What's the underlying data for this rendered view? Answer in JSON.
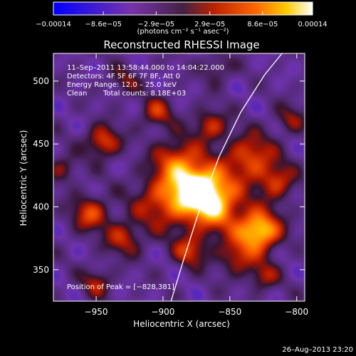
{
  "chart_data": {
    "type": "heatmap",
    "title": "Reconstructed RHESSI Image",
    "xlabel": "Heliocentric X (arcsec)",
    "ylabel": "Heliocentric Y (arcsec)",
    "xlim": [
      -982,
      -794
    ],
    "ylim": [
      325,
      522
    ],
    "x_ticks": [
      -950,
      -900,
      -850,
      -800
    ],
    "x_tick_labels": [
      "−950",
      "−900",
      "−850",
      "−800"
    ],
    "y_ticks": [
      350,
      400,
      450,
      500
    ],
    "y_tick_labels": [
      "350",
      "400",
      "450",
      "500"
    ],
    "colorbar": {
      "ticks": [
        -0.00014,
        -8.6e-05,
        -2.9e-05,
        2.9e-05,
        8.6e-05,
        0.00014
      ],
      "tick_labels": [
        "−0.00014",
        "−8.6e−05",
        "−2.9e−05",
        "2.9e−05",
        "8.6e−05",
        "0.00014"
      ],
      "unit_label": "(photons cm⁻² s⁻¹ asec⁻²)",
      "range": [
        -0.00014,
        0.00014
      ]
    },
    "annotations": [
      "11–Sep–2011 13:58:44.000 to 14:04:22.000",
      "Detectors: 4F 5F 6F 7F 8F, Att 0",
      "Energy Range: 12.0 – 25.0 keV",
      "Clean",
      "Total counts: 8.18E+03"
    ],
    "peak_label": "Position of Peak = [−828,381]",
    "peak": [
      -828,
      381
    ],
    "limb_curve": [
      [
        -894,
        325
      ],
      [
        -884,
        360
      ],
      [
        -872,
        400
      ],
      [
        -858,
        440
      ],
      [
        -842,
        475
      ],
      [
        -824,
        505
      ],
      [
        -811,
        522
      ]
    ],
    "sources": [
      {
        "x": -873,
        "y": 415,
        "amp": 1.0,
        "r": 14
      },
      {
        "x": -828,
        "y": 381,
        "amp": 1.0,
        "r": 11
      },
      {
        "x": -860,
        "y": 400,
        "amp": 0.65,
        "r": 16
      },
      {
        "x": -835,
        "y": 440,
        "amp": 0.6,
        "r": 13
      },
      {
        "x": -900,
        "y": 405,
        "amp": 0.55,
        "r": 16
      },
      {
        "x": -890,
        "y": 438,
        "amp": 0.55,
        "r": 12
      },
      {
        "x": -945,
        "y": 452,
        "amp": 0.6,
        "r": 9
      },
      {
        "x": -955,
        "y": 395,
        "amp": 0.55,
        "r": 10
      },
      {
        "x": -930,
        "y": 375,
        "amp": 0.45,
        "r": 10
      },
      {
        "x": -880,
        "y": 365,
        "amp": 0.5,
        "r": 9
      },
      {
        "x": -845,
        "y": 360,
        "amp": 0.45,
        "r": 10
      },
      {
        "x": -815,
        "y": 420,
        "amp": 0.5,
        "r": 10
      },
      {
        "x": -825,
        "y": 345,
        "amp": 0.4,
        "r": 8
      },
      {
        "x": -865,
        "y": 465,
        "amp": 0.5,
        "r": 9
      },
      {
        "x": -905,
        "y": 475,
        "amp": 0.45,
        "r": 9
      },
      {
        "x": -950,
        "y": 340,
        "amp": 0.4,
        "r": 8
      },
      {
        "x": -975,
        "y": 430,
        "amp": 0.35,
        "r": 8
      },
      {
        "x": -805,
        "y": 470,
        "amp": 0.35,
        "r": 8
      },
      {
        "x": -930,
        "y": 500,
        "amp": 0.3,
        "r": 8
      },
      {
        "x": -860,
        "y": 510,
        "amp": 0.3,
        "r": 8
      }
    ]
  },
  "footer": {
    "timestamp": "26–Aug–2013 23:20"
  }
}
